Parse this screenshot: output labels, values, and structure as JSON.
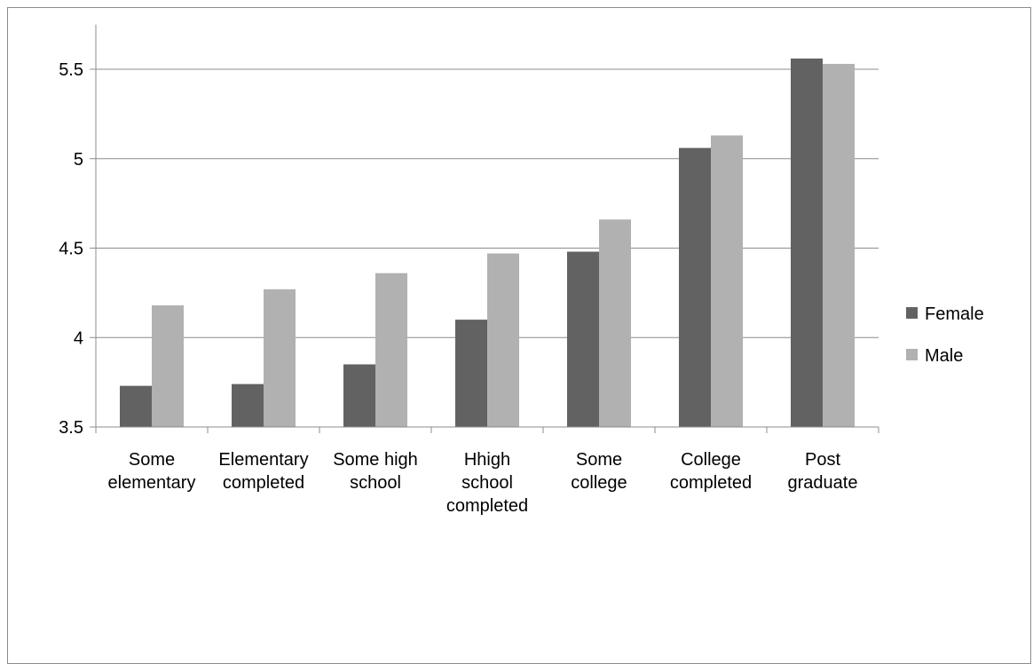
{
  "chart_data": {
    "type": "bar",
    "title": "",
    "xlabel": "",
    "ylabel": "",
    "ylim": [
      3.5,
      5.75
    ],
    "yticks": [
      "3.5",
      "4",
      "4.5",
      "5",
      "5.5"
    ],
    "grid": true,
    "legend_position": "right",
    "categories": [
      [
        "Some",
        "elementary"
      ],
      [
        "Elementary",
        "completed"
      ],
      [
        "Some high",
        "school"
      ],
      [
        "Hhigh",
        "school",
        "completed"
      ],
      [
        "Some",
        "college"
      ],
      [
        "College",
        "completed"
      ],
      [
        "Post",
        "graduate"
      ]
    ],
    "series": [
      {
        "name": "Female",
        "color": "#626262",
        "values": [
          3.73,
          3.74,
          3.85,
          4.1,
          4.48,
          5.06,
          5.56
        ]
      },
      {
        "name": "Male",
        "color": "#b1b1b1",
        "values": [
          4.18,
          4.27,
          4.36,
          4.47,
          4.66,
          5.13,
          5.53
        ]
      }
    ]
  }
}
